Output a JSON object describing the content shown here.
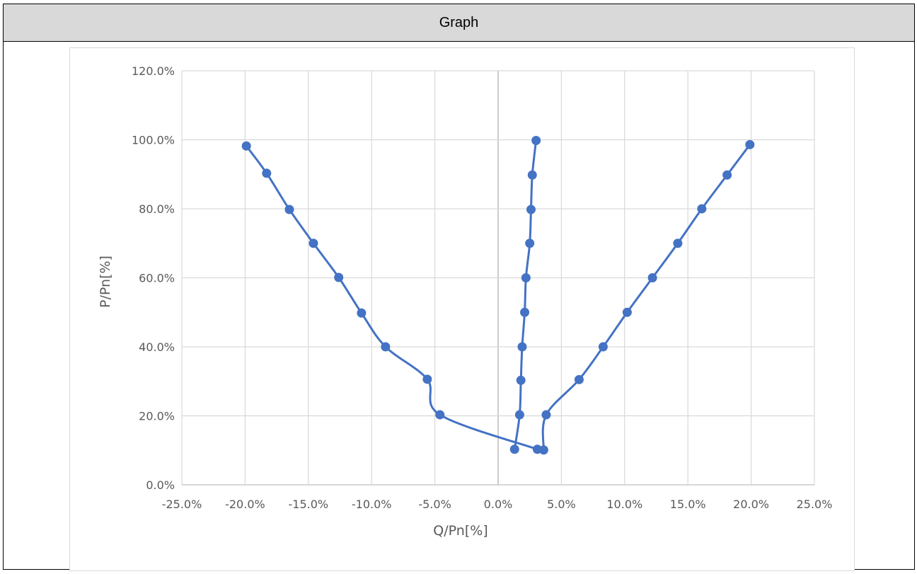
{
  "header": {
    "title": "Graph"
  },
  "chart_data": {
    "type": "scatter",
    "title": "",
    "xlabel": "Q/Pn[%]",
    "ylabel": "P/Pn[%]",
    "xlim": [
      -25,
      25
    ],
    "ylim": [
      0,
      120
    ],
    "x_ticks": [
      -25,
      -20,
      -15,
      -10,
      -5,
      0,
      5,
      10,
      15,
      20,
      25
    ],
    "x_tick_labels": [
      "-25.0%",
      "-20.0%",
      "-15.0%",
      "-10.0%",
      "-5.0%",
      "0.0%",
      "5.0%",
      "10.0%",
      "15.0%",
      "20.0%",
      "25.0%"
    ],
    "y_ticks": [
      0,
      20,
      40,
      60,
      80,
      100,
      120
    ],
    "y_tick_labels": [
      "0.0%",
      "20.0%",
      "40.0%",
      "60.0%",
      "80.0%",
      "100.0%",
      "120.0%"
    ],
    "grid": true,
    "line_style": "smooth lines with markers",
    "series_color": "#4472c4",
    "grid_color": "#d9d9d9",
    "zero_line_color": "#bfbfbf",
    "series": [
      {
        "points": [
          [
            -19.9,
            98.2
          ],
          [
            -18.3,
            90.3
          ],
          [
            -16.5,
            79.8
          ],
          [
            -14.6,
            70.0
          ],
          [
            -12.6,
            60.1
          ],
          [
            -10.8,
            49.8
          ],
          [
            -8.9,
            40.0
          ],
          [
            -5.6,
            30.6
          ],
          [
            -4.6,
            20.3
          ],
          [
            3.1,
            10.3
          ]
        ]
      },
      {
        "points": [
          [
            1.3,
            10.3
          ],
          [
            1.7,
            20.3
          ],
          [
            1.8,
            30.3
          ],
          [
            1.9,
            40.0
          ],
          [
            2.1,
            50.0
          ],
          [
            2.2,
            60.0
          ],
          [
            2.5,
            70.0
          ],
          [
            2.6,
            79.8
          ],
          [
            2.7,
            89.8
          ],
          [
            3.0,
            99.8
          ]
        ]
      },
      {
        "points": [
          [
            3.6,
            10.1
          ],
          [
            3.8,
            20.3
          ],
          [
            6.4,
            30.5
          ],
          [
            8.3,
            40.0
          ],
          [
            10.2,
            50.0
          ],
          [
            12.2,
            60.0
          ],
          [
            14.2,
            70.0
          ],
          [
            16.1,
            80.0
          ],
          [
            18.1,
            89.8
          ],
          [
            19.9,
            98.6
          ]
        ]
      }
    ]
  }
}
